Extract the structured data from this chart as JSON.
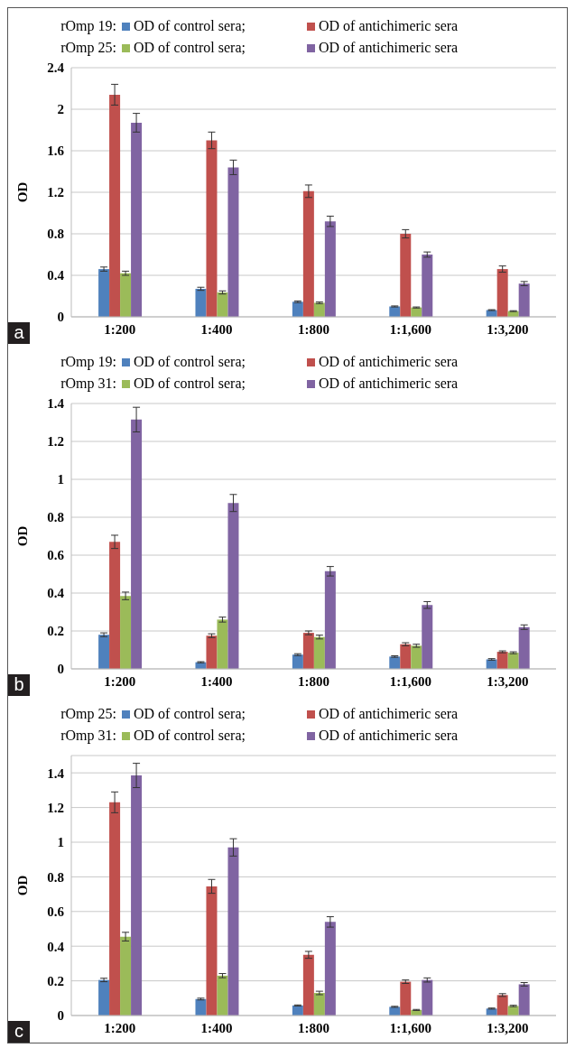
{
  "chart_data": [
    {
      "type": "bar",
      "ylabel": "OD",
      "categories": [
        "1:200",
        "1:400",
        "1:800",
        "1:1,600",
        "1:3,200"
      ],
      "ylim": [
        0,
        2.4
      ],
      "yticks": [
        0,
        0.4,
        0.8,
        1.2,
        1.6,
        2,
        2.4
      ],
      "grid": "y",
      "legend": "top",
      "annotations": [
        "rOmp 19:",
        "rOmp 25:",
        "a"
      ],
      "series": [
        {
          "name": "OD of control sera;",
          "color": "#4f81bd",
          "values": [
            0.46,
            0.27,
            0.145,
            0.1,
            0.065
          ],
          "errors": [
            0.02,
            0.015,
            0.008,
            0.005,
            0.004
          ]
        },
        {
          "name": "OD of antichimeric sera",
          "color": "#c0504d",
          "values": [
            2.14,
            1.7,
            1.21,
            0.8,
            0.46
          ],
          "errors": [
            0.1,
            0.08,
            0.06,
            0.04,
            0.03
          ]
        },
        {
          "name": "OD of control sera;",
          "color": "#9bbb59",
          "values": [
            0.42,
            0.235,
            0.135,
            0.09,
            0.055
          ],
          "errors": [
            0.02,
            0.015,
            0.008,
            0.005,
            0.004
          ]
        },
        {
          "name": "OD of antichimeric sera",
          "color": "#8064a2",
          "values": [
            1.87,
            1.44,
            0.92,
            0.6,
            0.32
          ],
          "errors": [
            0.09,
            0.07,
            0.05,
            0.025,
            0.02
          ]
        }
      ]
    },
    {
      "type": "bar",
      "ylabel": "OD",
      "categories": [
        "1:200",
        "1:400",
        "1:800",
        "1:1,600",
        "1:3,200"
      ],
      "ylim": [
        0,
        1.4
      ],
      "yticks": [
        0,
        0.2,
        0.4,
        0.6,
        0.8,
        1,
        1.2,
        1.4
      ],
      "grid": "y",
      "legend": "top",
      "annotations": [
        "rOmp 19:",
        "rOmp 31:",
        "b"
      ],
      "series": [
        {
          "name": "OD of control sera;",
          "color": "#4f81bd",
          "values": [
            0.18,
            0.035,
            0.075,
            0.065,
            0.05
          ],
          "errors": [
            0.01,
            0.003,
            0.005,
            0.004,
            0.004
          ]
        },
        {
          "name": "OD of antichimeric sera",
          "color": "#c0504d",
          "values": [
            0.67,
            0.175,
            0.19,
            0.13,
            0.09
          ],
          "errors": [
            0.035,
            0.01,
            0.01,
            0.008,
            0.005
          ]
        },
        {
          "name": "OD of control sera;",
          "color": "#9bbb59",
          "values": [
            0.385,
            0.26,
            0.168,
            0.122,
            0.085
          ],
          "errors": [
            0.02,
            0.013,
            0.01,
            0.008,
            0.005
          ]
        },
        {
          "name": "OD of antichimeric sera",
          "color": "#8064a2",
          "values": [
            1.315,
            0.875,
            0.515,
            0.337,
            0.22
          ],
          "errors": [
            0.065,
            0.045,
            0.025,
            0.018,
            0.012
          ]
        }
      ]
    },
    {
      "type": "bar",
      "ylabel": "OD",
      "categories": [
        "1:200",
        "1:400",
        "1:800",
        "1:1,600",
        "1:3,200"
      ],
      "ylim": [
        0,
        1.5
      ],
      "yticks": [
        0,
        0.2,
        0.4,
        0.6,
        0.8,
        1,
        1.2,
        1.4
      ],
      "grid": "y",
      "legend": "top",
      "annotations": [
        "rOmp 25:",
        "rOmp 31:",
        "c"
      ],
      "series": [
        {
          "name": "OD of control sera;",
          "color": "#4f81bd",
          "values": [
            0.205,
            0.095,
            0.058,
            0.05,
            0.04
          ],
          "errors": [
            0.01,
            0.005,
            0.003,
            0.003,
            0.003
          ]
        },
        {
          "name": "OD of antichimeric sera",
          "color": "#c0504d",
          "values": [
            1.23,
            0.745,
            0.35,
            0.195,
            0.118
          ],
          "errors": [
            0.06,
            0.04,
            0.02,
            0.01,
            0.008
          ]
        },
        {
          "name": "OD of control sera;",
          "color": "#9bbb59",
          "values": [
            0.455,
            0.23,
            0.13,
            0.032,
            0.055
          ],
          "errors": [
            0.025,
            0.012,
            0.01,
            0.003,
            0.004
          ]
        },
        {
          "name": "OD of antichimeric sera",
          "color": "#8064a2",
          "values": [
            1.385,
            0.97,
            0.54,
            0.205,
            0.18
          ],
          "errors": [
            0.07,
            0.05,
            0.03,
            0.012,
            0.01
          ]
        }
      ]
    }
  ]
}
